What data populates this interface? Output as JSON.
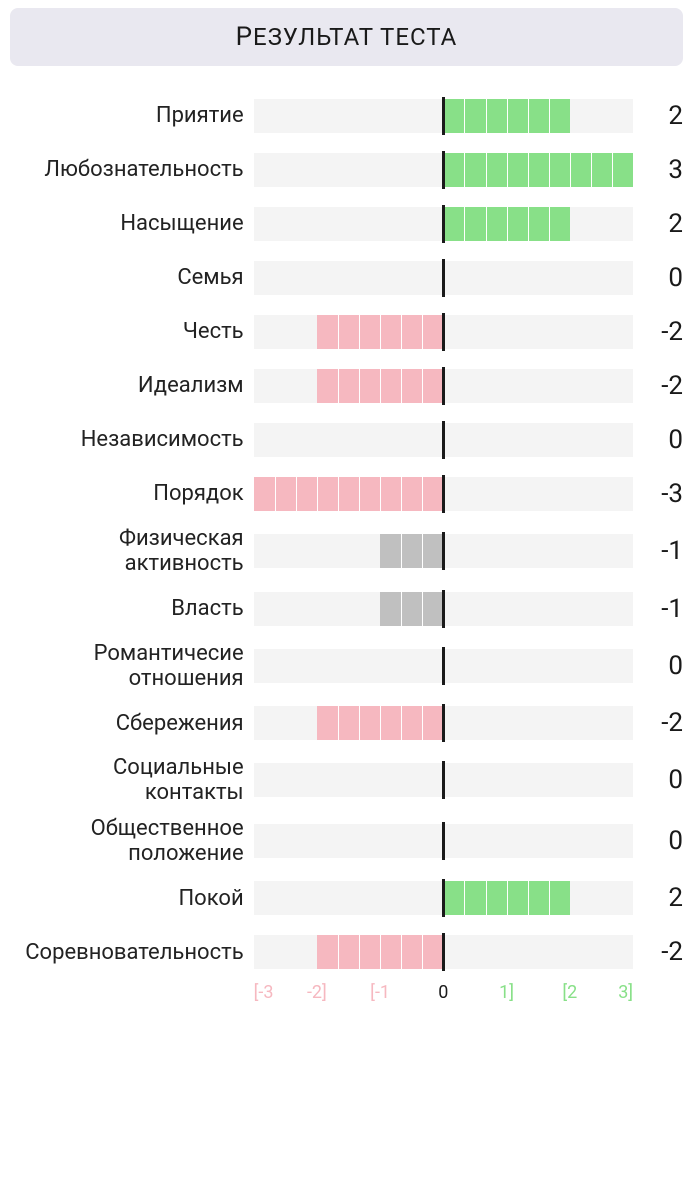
{
  "title": "Результат теста",
  "chart": {
    "type": "diverging-bar",
    "range_min": -3,
    "range_max": 3,
    "segments_per_unit": 3,
    "background_color": "#ffffff",
    "track_color": "#f4f4f4",
    "separator_color": "#ffffff",
    "center_line_color": "#1a1a1a",
    "positive_color": "#88e088",
    "negative_strong_color": "#f6b8c0",
    "negative_weak_color": "#c0c0c0",
    "label_fontsize": 22,
    "value_fontsize": 26,
    "title_bg": "#e9e8f0",
    "title_color": "#1a1a1a",
    "title_fontsize": 24,
    "axis_neg_color": "#f6b8c0",
    "axis_pos_color": "#88e088",
    "axis_zero_color": "#1a1a1a",
    "axis_fontsize": 18,
    "axis_ticks": [
      {
        "value": -3,
        "label": "[-3"
      },
      {
        "value": -2,
        "label": "-2]"
      },
      {
        "value": -1,
        "label": "[-1"
      },
      {
        "value": 0,
        "label": "0"
      },
      {
        "value": 1,
        "label": "1]"
      },
      {
        "value": 2,
        "label": "[2"
      },
      {
        "value": 3,
        "label": "3]"
      }
    ],
    "items": [
      {
        "label": "Приятие",
        "value": 2
      },
      {
        "label": "Любознательность",
        "value": 3
      },
      {
        "label": "Насыщение",
        "value": 2
      },
      {
        "label": "Семья",
        "value": 0
      },
      {
        "label": "Честь",
        "value": -2
      },
      {
        "label": "Идеализм",
        "value": -2
      },
      {
        "label": "Независимость",
        "value": 0
      },
      {
        "label": "Порядок",
        "value": -3
      },
      {
        "label": "Физическая активность",
        "value": -1
      },
      {
        "label": "Власть",
        "value": -1
      },
      {
        "label": "Романтичесие отношения",
        "value": 0
      },
      {
        "label": "Сбережения",
        "value": -2
      },
      {
        "label": "Социальные контакты",
        "value": 0
      },
      {
        "label": "Общественное положение",
        "value": 0
      },
      {
        "label": "Покой",
        "value": 2
      },
      {
        "label": "Соревновательность",
        "value": -2
      }
    ]
  }
}
